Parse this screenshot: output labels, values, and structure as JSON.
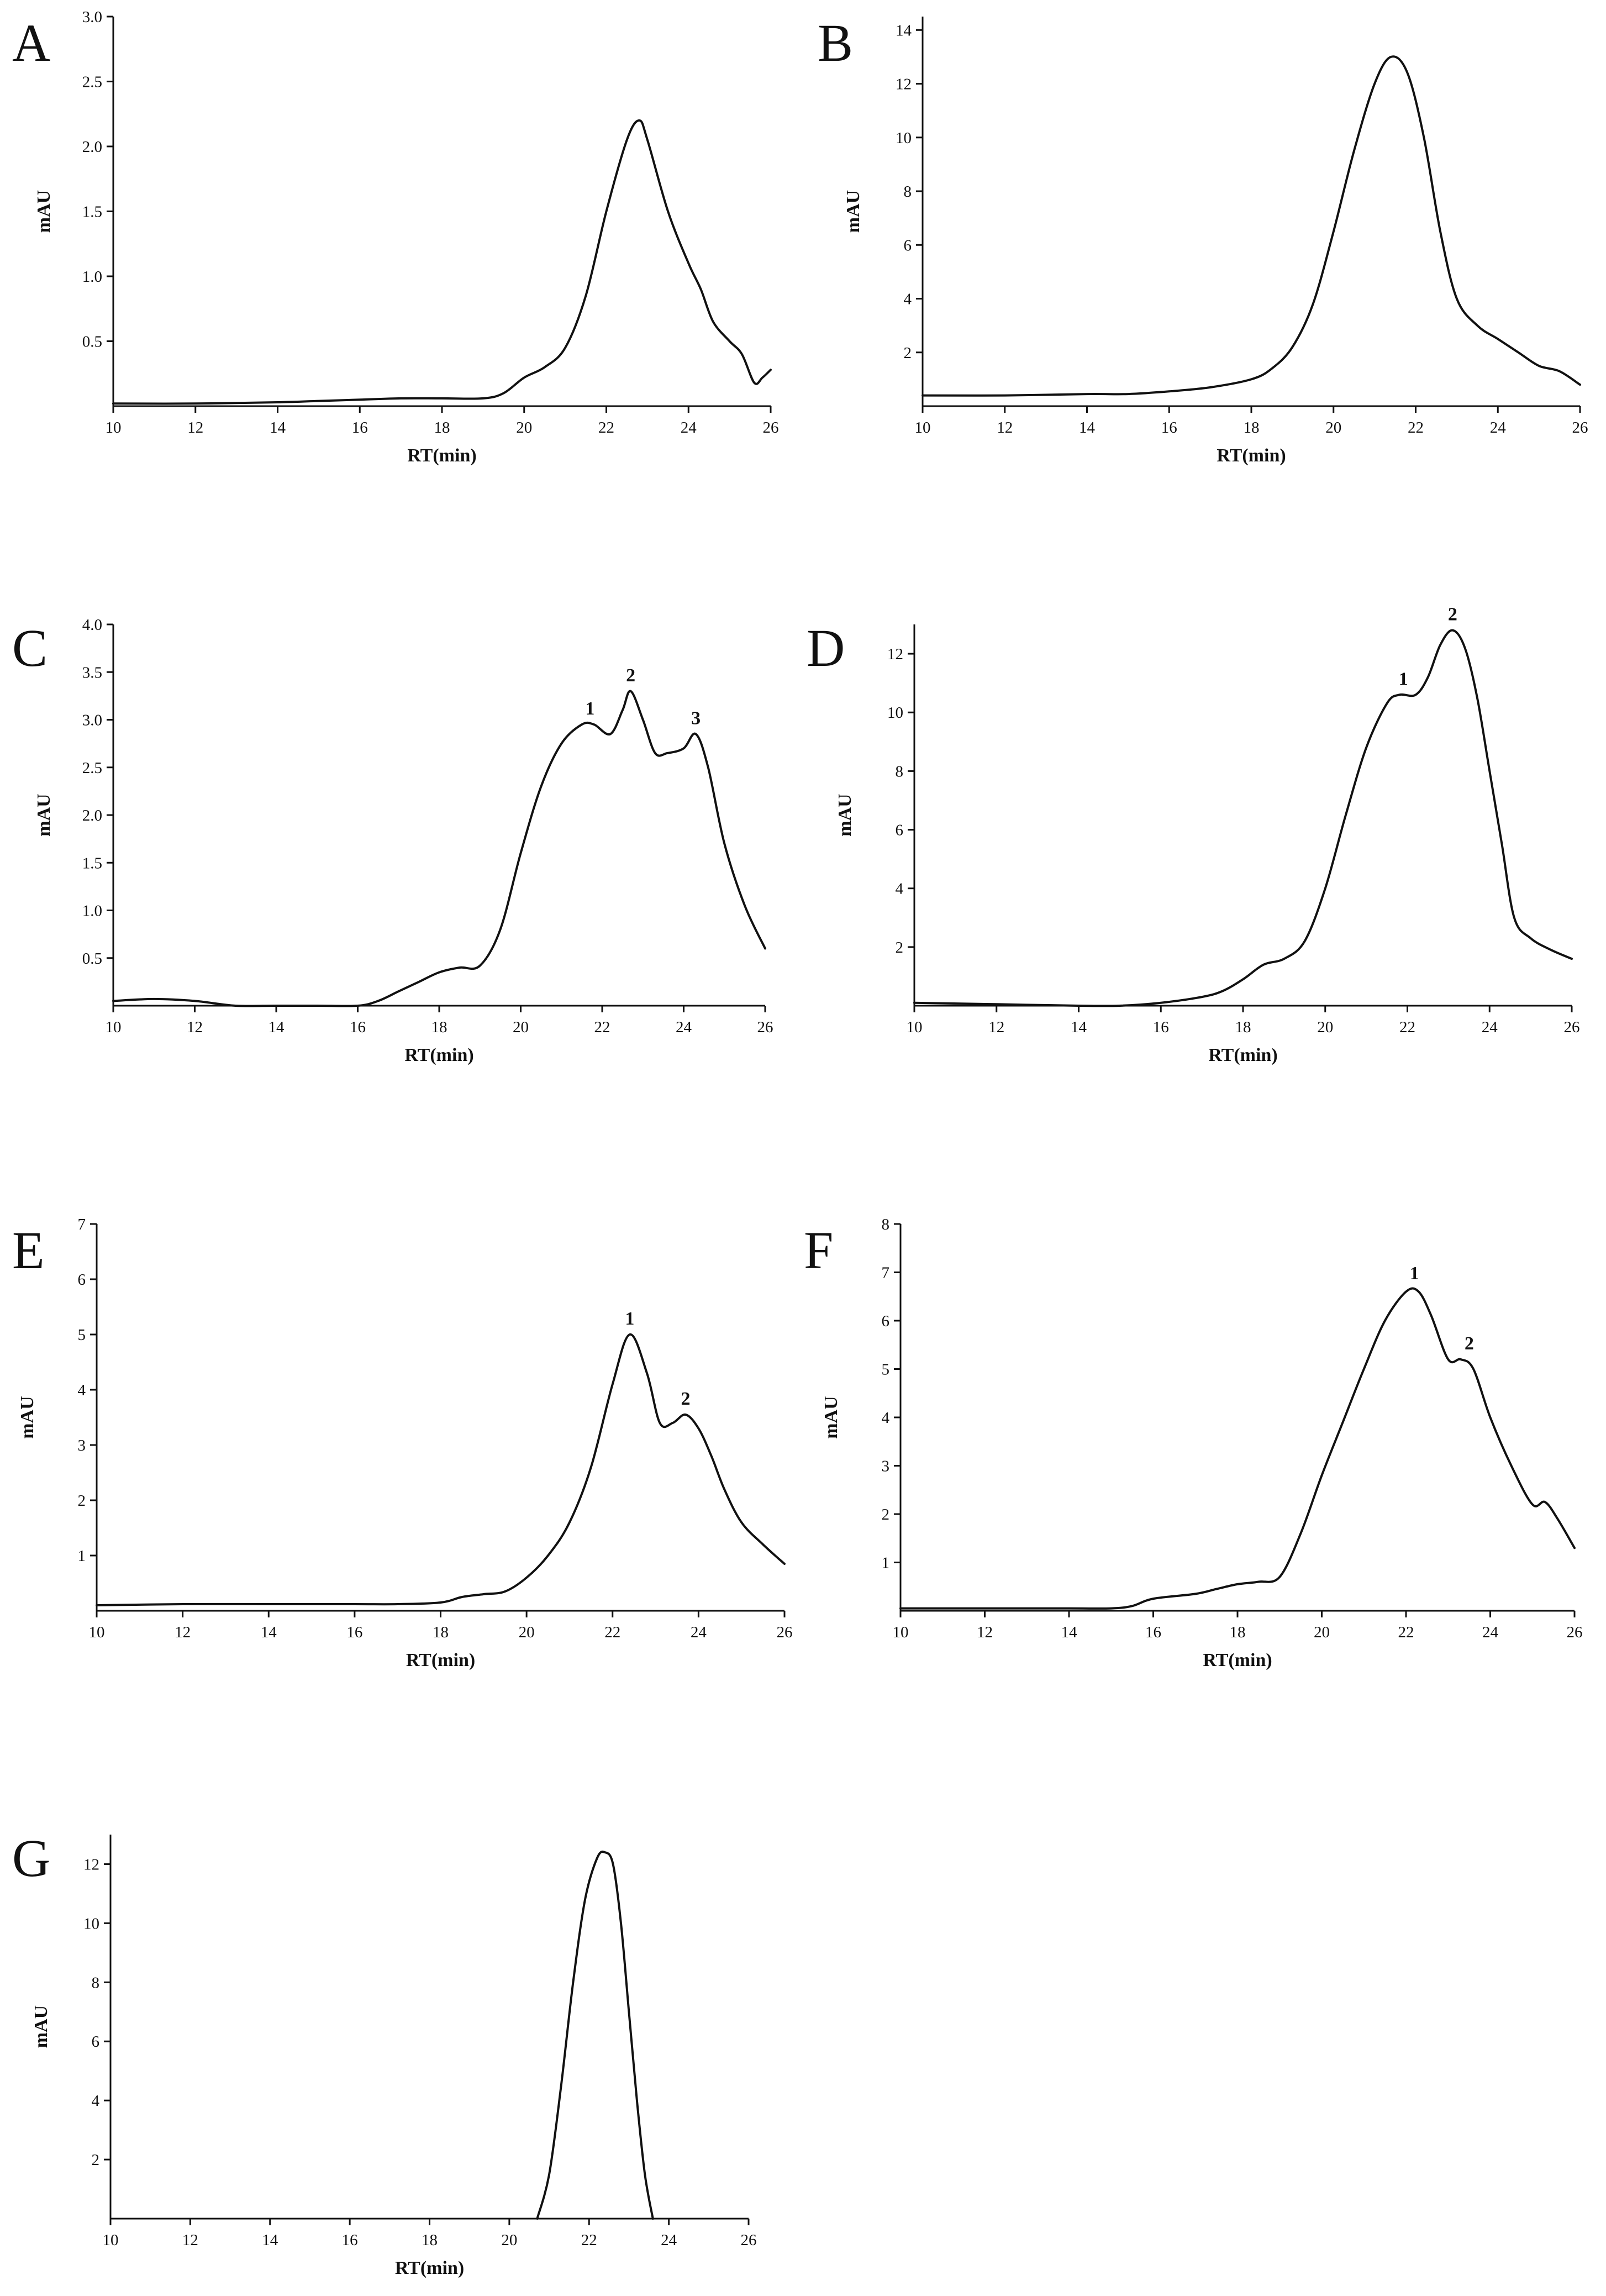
{
  "chart_data": [
    {
      "panel": "A",
      "type": "line",
      "xlabel": "RT(min)",
      "ylabel": "mAU",
      "xlim": [
        10,
        26
      ],
      "ylim": [
        0,
        3.0
      ],
      "xticks": [
        10,
        12,
        14,
        16,
        18,
        20,
        22,
        24,
        26
      ],
      "yticks": [
        0.5,
        1.0,
        1.5,
        2.0,
        2.5,
        3.0
      ],
      "ytick_labels": [
        "0.5",
        "1.0",
        "1.5",
        "2.0",
        "2.5",
        "3.0"
      ],
      "series": [
        {
          "name": "A",
          "x": [
            10,
            12,
            14,
            15,
            16,
            17,
            18,
            19,
            19.5,
            20,
            20.5,
            21,
            21.5,
            22,
            22.5,
            22.8,
            23,
            23.5,
            24,
            24.3,
            24.6,
            25,
            25.3,
            25.6,
            25.8,
            26
          ],
          "y": [
            0.02,
            0.02,
            0.03,
            0.04,
            0.05,
            0.06,
            0.06,
            0.06,
            0.1,
            0.22,
            0.3,
            0.45,
            0.85,
            1.5,
            2.05,
            2.2,
            2.05,
            1.5,
            1.1,
            0.9,
            0.65,
            0.5,
            0.4,
            0.18,
            0.22,
            0.28
          ]
        }
      ],
      "peak_labels": []
    },
    {
      "panel": "B",
      "type": "line",
      "xlabel": "RT(min)",
      "ylabel": "mAU",
      "xlim": [
        10,
        26
      ],
      "ylim": [
        0,
        14.5
      ],
      "xticks": [
        10,
        12,
        14,
        16,
        18,
        20,
        22,
        24,
        26
      ],
      "yticks": [
        2,
        4,
        6,
        8,
        10,
        12,
        14
      ],
      "ytick_labels": [
        "2",
        "4",
        "6",
        "8",
        "10",
        "12",
        "14"
      ],
      "series": [
        {
          "name": "B",
          "x": [
            10,
            12,
            14,
            15,
            16,
            17,
            18,
            18.5,
            19,
            19.5,
            20,
            20.5,
            21,
            21.4,
            21.8,
            22.2,
            22.6,
            23,
            23.5,
            24,
            24.5,
            25,
            25.5,
            26
          ],
          "y": [
            0.4,
            0.4,
            0.45,
            0.45,
            0.55,
            0.7,
            1.0,
            1.4,
            2.2,
            3.8,
            6.5,
            9.5,
            12.0,
            13.0,
            12.4,
            10.0,
            6.5,
            4.0,
            3.0,
            2.5,
            2.0,
            1.5,
            1.3,
            0.8
          ]
        }
      ],
      "peak_labels": []
    },
    {
      "panel": "C",
      "type": "line",
      "xlabel": "RT(min)",
      "ylabel": "mAU",
      "xlim": [
        10,
        26
      ],
      "ylim": [
        0,
        4.0
      ],
      "xticks": [
        10,
        12,
        14,
        16,
        18,
        20,
        22,
        24,
        26
      ],
      "yticks": [
        0.5,
        1.0,
        1.5,
        2.0,
        2.5,
        3.0,
        3.5,
        4.0
      ],
      "ytick_labels": [
        "0.5",
        "1.0",
        "1.5",
        "2.0",
        "2.5",
        "3.0",
        "3.5",
        "4.0"
      ],
      "series": [
        {
          "name": "C",
          "x": [
            10,
            11,
            12,
            13,
            14,
            15,
            16,
            16.5,
            17,
            17.5,
            18,
            18.5,
            19,
            19.5,
            20,
            20.5,
            21,
            21.5,
            21.8,
            22.2,
            22.5,
            22.7,
            23,
            23.3,
            23.6,
            24,
            24.3,
            24.6,
            25,
            25.5,
            26
          ],
          "y": [
            0.05,
            0.07,
            0.05,
            0.0,
            0.0,
            0.0,
            0.0,
            0.05,
            0.15,
            0.25,
            0.35,
            0.4,
            0.42,
            0.8,
            1.6,
            2.3,
            2.75,
            2.95,
            2.95,
            2.85,
            3.1,
            3.3,
            3.0,
            2.65,
            2.65,
            2.7,
            2.85,
            2.5,
            1.7,
            1.05,
            0.6
          ]
        }
      ],
      "peak_labels": [
        {
          "label": "1",
          "x": 21.7,
          "y": 2.95
        },
        {
          "label": "2",
          "x": 22.7,
          "y": 3.3
        },
        {
          "label": "3",
          "x": 24.3,
          "y": 2.85
        }
      ]
    },
    {
      "panel": "D",
      "type": "line",
      "xlabel": "RT(min)",
      "ylabel": "mAU",
      "xlim": [
        10,
        26
      ],
      "ylim": [
        0,
        13.0
      ],
      "xticks": [
        10,
        12,
        14,
        16,
        18,
        20,
        22,
        24,
        26
      ],
      "yticks": [
        2,
        4,
        6,
        8,
        10,
        12
      ],
      "ytick_labels": [
        "2",
        "4",
        "6",
        "8",
        "10",
        "12"
      ],
      "series": [
        {
          "name": "D",
          "x": [
            10,
            12,
            14,
            15,
            16,
            17,
            17.5,
            18,
            18.5,
            19,
            19.5,
            20,
            20.5,
            21,
            21.5,
            21.8,
            22.2,
            22.5,
            22.8,
            23.1,
            23.4,
            23.7,
            24,
            24.3,
            24.6,
            25,
            25.5,
            26
          ],
          "y": [
            0.1,
            0.05,
            0.0,
            0.0,
            0.1,
            0.3,
            0.5,
            0.9,
            1.4,
            1.6,
            2.2,
            4.0,
            6.5,
            8.8,
            10.3,
            10.6,
            10.6,
            11.2,
            12.3,
            12.8,
            12.2,
            10.5,
            8.0,
            5.5,
            3.0,
            2.3,
            1.9,
            1.6
          ]
        }
      ],
      "peak_labels": [
        {
          "label": "1",
          "x": 21.9,
          "y": 10.6
        },
        {
          "label": "2",
          "x": 23.1,
          "y": 12.8
        }
      ]
    },
    {
      "panel": "E",
      "type": "line",
      "xlabel": "RT(min)",
      "ylabel": "mAU",
      "xlim": [
        10,
        26
      ],
      "ylim": [
        0,
        7.0
      ],
      "xticks": [
        10,
        12,
        14,
        16,
        18,
        20,
        22,
        24,
        26
      ],
      "yticks": [
        1,
        2,
        3,
        4,
        5,
        6,
        7
      ],
      "ytick_labels": [
        "1",
        "2",
        "3",
        "4",
        "5",
        "6",
        "7"
      ],
      "series": [
        {
          "name": "E",
          "x": [
            10,
            12,
            14,
            16,
            17,
            18,
            18.5,
            19,
            19.5,
            20,
            20.5,
            21,
            21.5,
            22,
            22.4,
            22.8,
            23.1,
            23.4,
            23.7,
            24,
            24.3,
            24.6,
            25,
            25.5,
            26
          ],
          "y": [
            0.1,
            0.12,
            0.12,
            0.12,
            0.12,
            0.15,
            0.25,
            0.3,
            0.35,
            0.6,
            1.0,
            1.6,
            2.6,
            4.1,
            5.0,
            4.3,
            3.4,
            3.4,
            3.55,
            3.3,
            2.8,
            2.2,
            1.6,
            1.2,
            0.85
          ]
        }
      ],
      "peak_labels": [
        {
          "label": "1",
          "x": 22.4,
          "y": 5.0
        },
        {
          "label": "2",
          "x": 23.7,
          "y": 3.55
        }
      ]
    },
    {
      "panel": "F",
      "type": "line",
      "xlabel": "RT(min)",
      "ylabel": "mAU",
      "xlim": [
        10,
        26
      ],
      "ylim": [
        0,
        8.0
      ],
      "xticks": [
        10,
        12,
        14,
        16,
        18,
        20,
        22,
        24,
        26
      ],
      "yticks": [
        1,
        2,
        3,
        4,
        5,
        6,
        7,
        8
      ],
      "ytick_labels": [
        "1",
        "2",
        "3",
        "4",
        "5",
        "6",
        "7",
        "8"
      ],
      "series": [
        {
          "name": "F",
          "x": [
            10,
            12,
            14,
            15,
            15.5,
            16,
            17,
            17.5,
            18,
            18.5,
            19,
            19.5,
            20,
            20.5,
            21,
            21.5,
            22,
            22.3,
            22.6,
            23,
            23.3,
            23.6,
            24,
            24.5,
            25,
            25.3,
            25.6,
            26
          ],
          "y": [
            0.05,
            0.05,
            0.05,
            0.05,
            0.1,
            0.25,
            0.35,
            0.45,
            0.55,
            0.6,
            0.7,
            1.6,
            2.8,
            3.9,
            5.0,
            6.0,
            6.6,
            6.6,
            6.1,
            5.2,
            5.2,
            5.0,
            4.0,
            3.0,
            2.2,
            2.25,
            1.9,
            1.3
          ]
        }
      ],
      "peak_labels": [
        {
          "label": "1",
          "x": 22.2,
          "y": 6.65
        },
        {
          "label": "2",
          "x": 23.5,
          "y": 5.2
        }
      ]
    },
    {
      "panel": "G",
      "type": "line",
      "xlabel": "RT(min)",
      "ylabel": "mAU",
      "xlim": [
        10,
        26
      ],
      "ylim": [
        0,
        13.0
      ],
      "xticks": [
        10,
        12,
        14,
        16,
        18,
        20,
        22,
        24,
        26
      ],
      "yticks": [
        2,
        4,
        6,
        8,
        10,
        12
      ],
      "ytick_labels": [
        "2",
        "4",
        "6",
        "8",
        "10",
        "12"
      ],
      "series": [
        {
          "name": "G",
          "x": [
            20.7,
            21.0,
            21.3,
            21.6,
            21.9,
            22.2,
            22.4,
            22.6,
            22.8,
            23.0,
            23.2,
            23.4,
            23.6
          ],
          "y": [
            0.0,
            1.5,
            4.5,
            8.0,
            10.8,
            12.2,
            12.4,
            12.0,
            10.0,
            7.0,
            4.0,
            1.5,
            0.0
          ]
        }
      ],
      "peak_labels": []
    }
  ]
}
